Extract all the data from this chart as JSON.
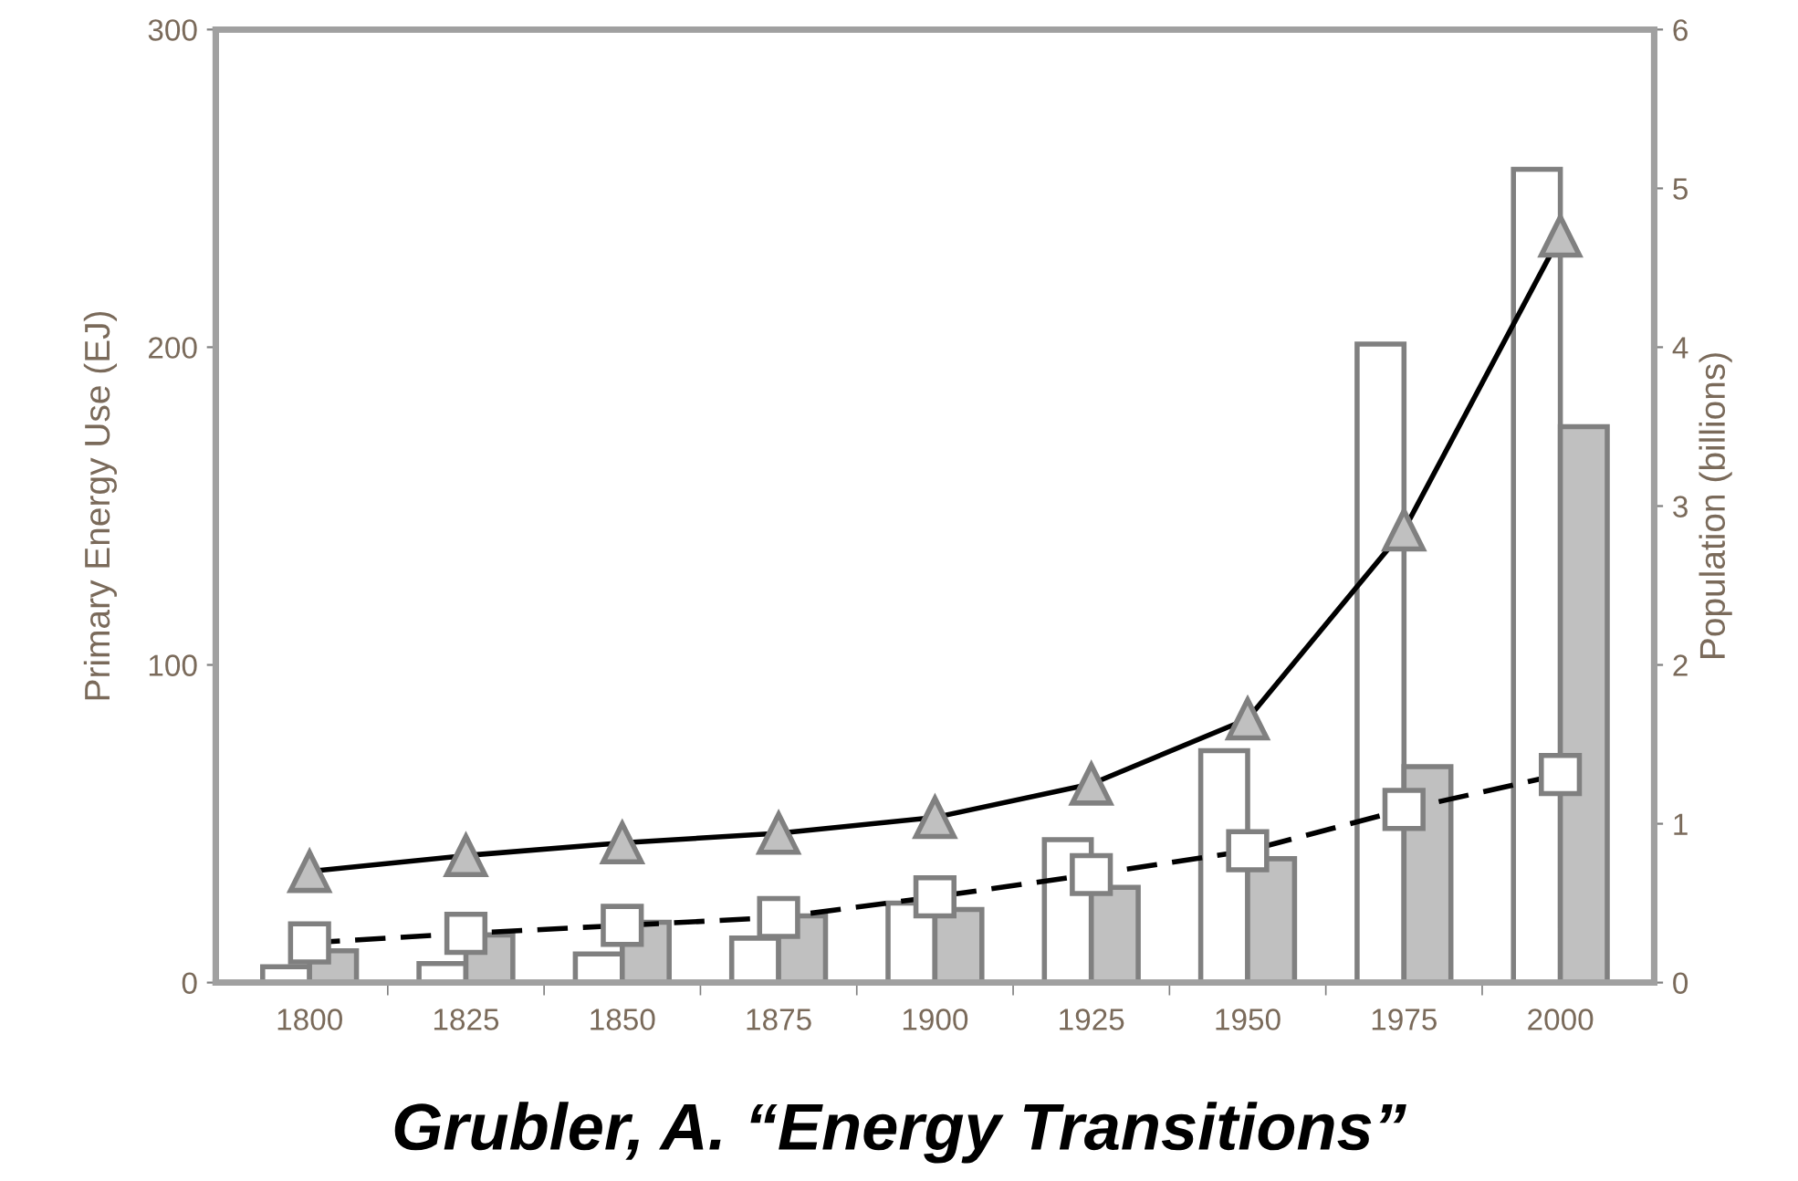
{
  "chart_data": {
    "type": "bar",
    "categories": [
      "1800",
      "1825",
      "1850",
      "1875",
      "1900",
      "1925",
      "1950",
      "1975",
      "2000"
    ],
    "series": [
      {
        "color": "#ffffff",
        "values": [
          5,
          6,
          9,
          14,
          25,
          45,
          73,
          201,
          256
        ]
      },
      {
        "color": "#c0c0c0",
        "values": [
          10,
          15,
          19,
          21,
          23,
          30,
          39,
          68,
          175
        ]
      },
      {
        "type": "line",
        "axis": "y2",
        "color": "#000000",
        "marker": "triangle",
        "line_style": "solid",
        "values": [
          0.7,
          0.8,
          0.88,
          0.94,
          1.04,
          1.25,
          1.66,
          2.85,
          4.7
        ]
      },
      {
        "type": "line",
        "axis": "y2",
        "color": "#000000",
        "marker": "square",
        "line_style": "dashed",
        "values": [
          0.25,
          0.31,
          0.36,
          0.41,
          0.54,
          0.68,
          0.83,
          1.09,
          1.31
        ]
      }
    ],
    "ylabel": "Primary Energy Use (EJ)",
    "y2label": "Population (billions)",
    "ylim": [
      0,
      300
    ],
    "yticks": [
      0,
      100,
      200,
      300
    ],
    "y2lim": [
      0,
      6
    ],
    "y2ticks": [
      0,
      1,
      2,
      3,
      4,
      5,
      6
    ],
    "grid": false,
    "legend": false,
    "annotations": [
      "Grubler, A. “Energy Transitions”"
    ]
  }
}
